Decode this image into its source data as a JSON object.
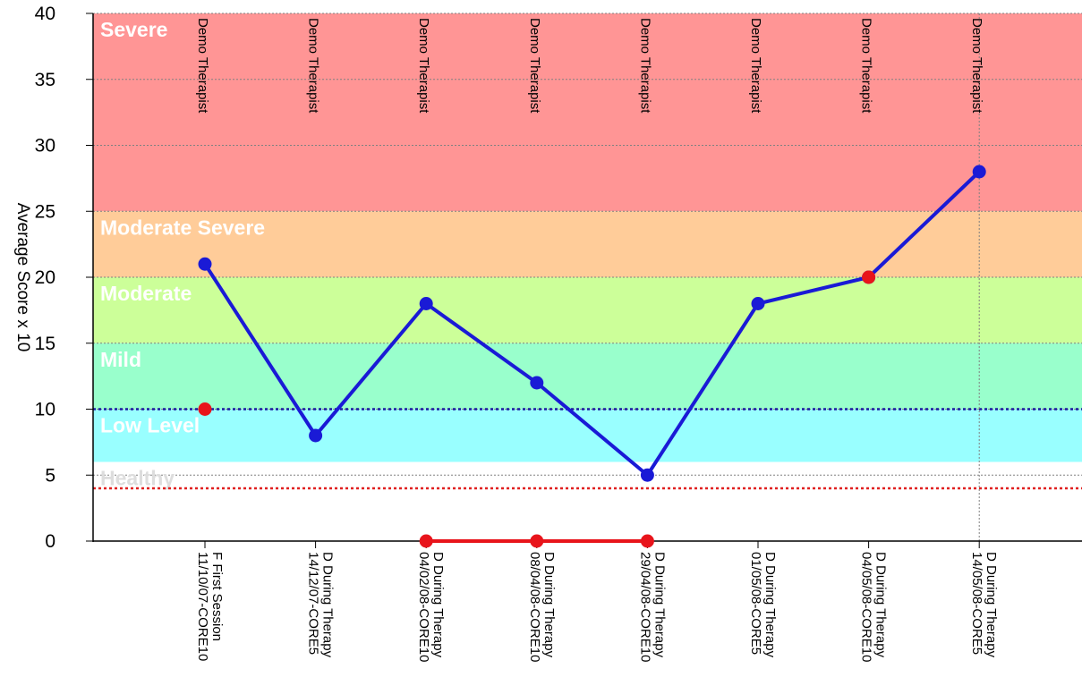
{
  "chart_data": {
    "type": "line",
    "title": "",
    "xlabel": "",
    "ylabel": "Average Score x 10",
    "ylim": [
      0,
      40
    ],
    "yticks": [
      0,
      5,
      10,
      15,
      20,
      25,
      30,
      35,
      40
    ],
    "grid": true,
    "bands": [
      {
        "name": "Severe",
        "from": 25,
        "to": 40,
        "color": "#ff9595",
        "label_color": "#ffffff"
      },
      {
        "name": "Moderate Severe",
        "from": 20,
        "to": 25,
        "color": "#ffcc99",
        "label_color": "#ffffff"
      },
      {
        "name": "Moderate",
        "from": 15,
        "to": 20,
        "color": "#ccff99",
        "label_color": "#ffffff"
      },
      {
        "name": "Mild",
        "from": 10,
        "to": 15,
        "color": "#99ffcc",
        "label_color": "#ffffff"
      },
      {
        "name": "Low Level",
        "from": 6,
        "to": 10,
        "color": "#99ffff",
        "label_color": "#ffffff"
      },
      {
        "name": "Healthy",
        "from": 0,
        "to": 6,
        "color": "#ffffff",
        "label_color": "#dddddd"
      }
    ],
    "reference_lines": [
      {
        "value": 10,
        "color": "#1a1aa0"
      },
      {
        "value": 4,
        "color": "#e02020"
      }
    ],
    "categories": [
      {
        "line1": "F First Session",
        "line2": "11/10/07-CORE10",
        "therapist": "Demo Therapist"
      },
      {
        "line1": "D During Therapy",
        "line2": "14/12/07-CORE5",
        "therapist": "Demo Therapist"
      },
      {
        "line1": "D During Therapy",
        "line2": "04/02/08-CORE10",
        "therapist": "Demo Therapist"
      },
      {
        "line1": "D During Therapy",
        "line2": "08/04/08-CORE10",
        "therapist": "Demo Therapist"
      },
      {
        "line1": "D During Therapy",
        "line2": "29/04/08-CORE10",
        "therapist": "Demo Therapist"
      },
      {
        "line1": "D During Therapy",
        "line2": "01/05/08-CORE5",
        "therapist": "Demo Therapist"
      },
      {
        "line1": "D During Therapy",
        "line2": "04/05/08-CORE10",
        "therapist": "Demo Therapist"
      },
      {
        "line1": "D During Therapy",
        "line2": "14/05/08-CORE5",
        "therapist": "Demo Therapist"
      }
    ],
    "series": [
      {
        "values": [
          21,
          8,
          18,
          12,
          5,
          18,
          20,
          28
        ],
        "color": "#1a1ad6"
      },
      {
        "values": [
          null,
          null,
          0,
          0,
          0,
          null,
          null,
          null
        ],
        "color": "#e8141b"
      }
    ],
    "red_markers": [
      {
        "index": 0,
        "value": 10
      },
      {
        "index": 6,
        "value": 20
      }
    ]
  }
}
